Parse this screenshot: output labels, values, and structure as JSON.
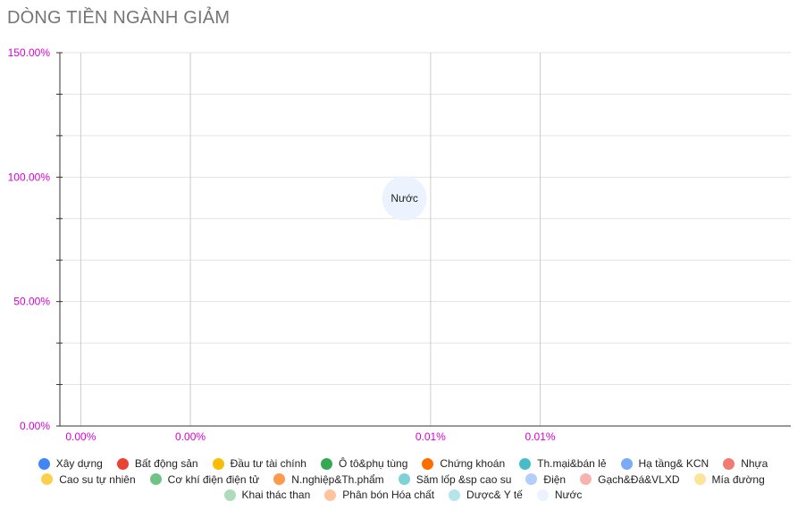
{
  "chart_data": {
    "type": "bubble",
    "title": "DÒNG TIỀN NGÀNH GIẢM",
    "xlabel": "",
    "ylabel": "",
    "x_ticks": [
      {
        "label": "0.00%",
        "value": 0.0004
      },
      {
        "label": "0.00%",
        "value": 0.0025
      },
      {
        "label": "0.01%",
        "value": 0.0071
      },
      {
        "label": "0.01%",
        "value": 0.0092
      }
    ],
    "xlim": [
      0,
      0.014
    ],
    "y_ticks": [
      {
        "label": "0.00%",
        "value": 0
      },
      {
        "label": "50.00%",
        "value": 0.5
      },
      {
        "label": "100.00%",
        "value": 1.0
      },
      {
        "label": "150.00%",
        "value": 1.5
      }
    ],
    "ylim": [
      0,
      1.5
    ],
    "grid": true,
    "legend_position": "bottom",
    "series": [
      {
        "name": "Xây dựng",
        "color": "#4285f4"
      },
      {
        "name": "Bất động sản",
        "color": "#ea4335"
      },
      {
        "name": "Đầu tư tài chính",
        "color": "#fbbc04"
      },
      {
        "name": "Ô tô&phụ tùng",
        "color": "#34a853"
      },
      {
        "name": "Chứng khoán",
        "color": "#ff6d01"
      },
      {
        "name": "Th.mại&bán lẻ",
        "color": "#46bdc6"
      },
      {
        "name": "Hạ tầng& KCN",
        "color": "#7baaf7"
      },
      {
        "name": "Nhựa",
        "color": "#f07b72"
      },
      {
        "name": "Cao su tự nhiên",
        "color": "#fcd04f"
      },
      {
        "name": "Cơ khí điện điện tử",
        "color": "#71c287"
      },
      {
        "name": "N.nghiệp&Th.phẩm",
        "color": "#ff994d"
      },
      {
        "name": "Săm lốp &sp cao su",
        "color": "#7ed1d7"
      },
      {
        "name": "Điện",
        "color": "#b3cefb"
      },
      {
        "name": "Gạch&Đá&VLXD",
        "color": "#f7b4ae"
      },
      {
        "name": "Mía đường",
        "color": "#fde49b"
      },
      {
        "name": "Khai thác than",
        "color": "#aedcba"
      },
      {
        "name": "Phân bón Hóa chất",
        "color": "#ffc599"
      },
      {
        "name": "Dược& Y tế",
        "color": "#b5e5e8"
      },
      {
        "name": "Nước",
        "color": "#ecf3fe"
      }
    ],
    "points": [
      {
        "series": "Nước",
        "x": 0.0066,
        "y": 0.915,
        "label": "Nước"
      }
    ]
  },
  "legend_rows": [
    [
      0,
      1,
      2,
      3,
      4,
      5,
      6,
      7
    ],
    [
      8,
      9,
      10,
      11,
      12,
      13,
      14
    ],
    [
      15,
      16,
      17,
      18
    ]
  ]
}
